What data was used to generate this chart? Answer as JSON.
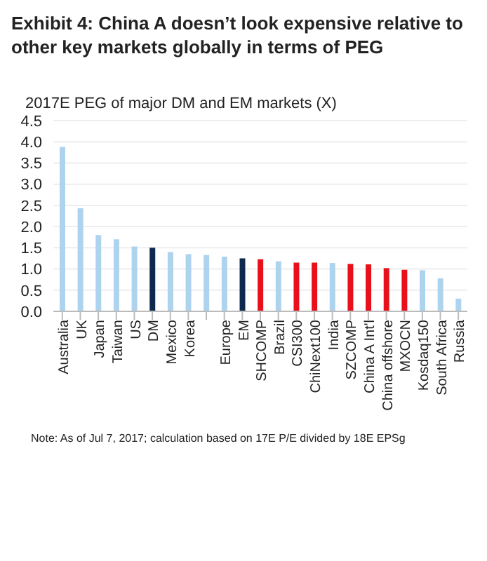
{
  "chart_data": {
    "type": "bar",
    "title": "Exhibit 4: China A doesn’t look expensive relative to other key markets globally in terms of PEG",
    "subtitle": "2017E PEG of major DM and EM markets (X)",
    "categories": [
      "Australia",
      "UK",
      "Japan",
      "Taiwan",
      "US",
      "DM",
      "Mexico",
      "Korea",
      null,
      "Europe",
      "EM",
      "SHCOMP",
      "Brazil",
      "CSI300",
      "ChiNext100",
      "India",
      "SZCOMP",
      "China A Int'l",
      "China offshore",
      "MXOCN",
      "Kosdaq150",
      "South Africa",
      "Russia"
    ],
    "values": [
      3.88,
      2.43,
      1.8,
      1.7,
      1.53,
      1.5,
      1.4,
      1.35,
      1.33,
      1.29,
      1.25,
      1.23,
      1.18,
      1.15,
      1.15,
      1.14,
      1.12,
      1.11,
      1.02,
      0.98,
      0.97,
      0.78,
      0.3
    ],
    "colors": [
      "#aed3ee",
      "#aed3ee",
      "#aed3ee",
      "#aed3ee",
      "#aed3ee",
      "#0d2a4e",
      "#aed3ee",
      "#aed3ee",
      "#aed3ee",
      "#aed3ee",
      "#0d2a4e",
      "#e8101a",
      "#aed3ee",
      "#e8101a",
      "#e8101a",
      "#aed3ee",
      "#e8101a",
      "#e8101a",
      "#e8101a",
      "#e8101a",
      "#aed3ee",
      "#aed3ee",
      "#aed3ee"
    ],
    "ylim": [
      0,
      4.5
    ],
    "yticks": [
      {
        "value": 0,
        "label": "0.0"
      },
      {
        "value": 0.5,
        "label": "0.5"
      },
      {
        "value": 1,
        "label": "1.0"
      },
      {
        "value": 1.5,
        "label": "1.5"
      },
      {
        "value": 2,
        "label": "2.0"
      },
      {
        "value": 2.5,
        "label": "2.5"
      },
      {
        "value": 3,
        "label": "3.0"
      },
      {
        "value": 3.5,
        "label": "3.5"
      },
      {
        "value": 4,
        "label": "4.0"
      },
      {
        "value": 4.5,
        "label": "4.5"
      }
    ],
    "grid": "y",
    "annotations": [
      "Note: As of Jul 7, 2017; calculation based on 17E P/E divided by 18E EPSg"
    ]
  }
}
